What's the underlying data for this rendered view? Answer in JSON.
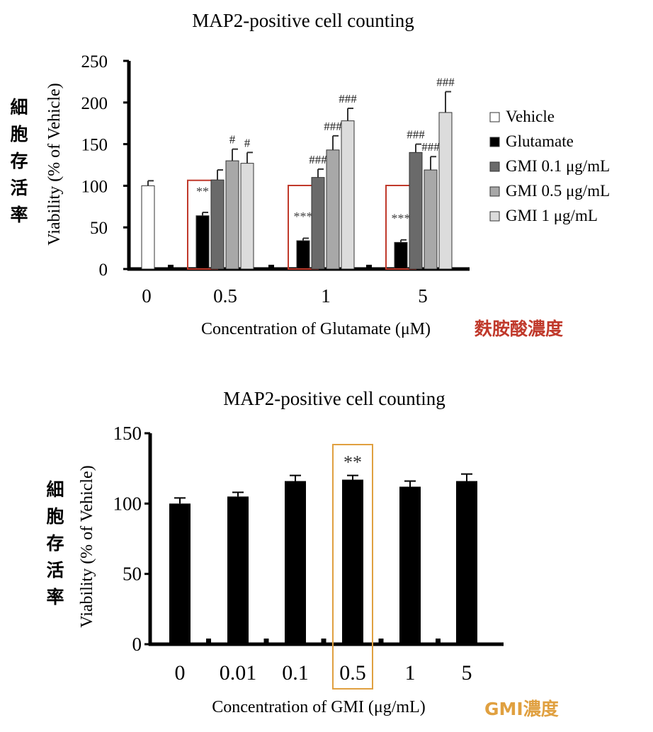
{
  "chart_data": [
    {
      "type": "bar",
      "title": "MAP2-positive  cell counting",
      "ylabel": "Viability (% of Vehicle)",
      "ylabel_zh": "細胞存活率",
      "xlabel": "Concentration of Glutamate (μM)",
      "xlabel_zh": "麩胺酸濃度",
      "ylim": [
        0,
        250
      ],
      "yticks": [
        "0",
        "50",
        "100",
        "150",
        "200",
        "250"
      ],
      "categories": [
        "0",
        "0.5",
        "1",
        "5"
      ],
      "series": [
        {
          "name": "Vehicle",
          "values": [
            100,
            null,
            null,
            null
          ],
          "errors": [
            6,
            null,
            null,
            null
          ],
          "color": "#ffffff"
        },
        {
          "name": "Glutamate",
          "values": [
            null,
            64,
            34,
            32
          ],
          "errors": [
            null,
            4,
            3,
            3
          ],
          "color": "#000000"
        },
        {
          "name": "GMI 0.1 μg/mL",
          "values": [
            null,
            107,
            110,
            140
          ],
          "errors": [
            null,
            12,
            10,
            10
          ],
          "color": "#6a6a6a"
        },
        {
          "name": "GMI 0.5 μg/mL",
          "values": [
            null,
            130,
            143,
            119
          ],
          "errors": [
            null,
            14,
            17,
            16
          ],
          "color": "#a8a8a8"
        },
        {
          "name": "GMI 1 μg/mL",
          "values": [
            null,
            127,
            178,
            188
          ],
          "errors": [
            null,
            13,
            15,
            25
          ],
          "color": "#dcdcdc"
        }
      ],
      "annotations": [
        {
          "text": "**",
          "category": "0.5",
          "series": "Glutamate"
        },
        {
          "text": "***",
          "category": "1",
          "series": "Glutamate"
        },
        {
          "text": "***",
          "category": "5",
          "series": "Glutamate"
        },
        {
          "text": "#",
          "category": "0.5",
          "series": "GMI 0.5 μg/mL"
        },
        {
          "text": "#",
          "category": "0.5",
          "series": "GMI 1 μg/mL"
        },
        {
          "text": "###",
          "category": "1",
          "series": "GMI 0.1 μg/mL"
        },
        {
          "text": "###",
          "category": "1",
          "series": "GMI 0.5 μg/mL"
        },
        {
          "text": "###",
          "category": "1",
          "series": "GMI 1 μg/mL"
        },
        {
          "text": "###",
          "category": "5",
          "series": "GMI 0.1 μg/mL"
        },
        {
          "text": "###",
          "category": "5",
          "series": "GMI 0.5 μg/mL"
        },
        {
          "text": "###",
          "category": "5",
          "series": "GMI 1 μg/mL"
        }
      ],
      "highlight": [
        "0.5",
        "1",
        "5"
      ],
      "highlight_color": "#c0392b",
      "legend_position": "right"
    },
    {
      "type": "bar",
      "title": "MAP2-positive  cell counting",
      "ylabel": "Viability (% of Vehicle)",
      "ylabel_zh": "細胞存活率",
      "xlabel": "Concentration of GMI (μg/mL)",
      "xlabel_zh": "GMI濃度",
      "ylim": [
        0,
        150
      ],
      "yticks": [
        "0",
        "50",
        "100",
        "150"
      ],
      "categories": [
        "0",
        "0.01",
        "0.1",
        "0.5",
        "1",
        "5"
      ],
      "values": [
        100,
        105,
        116,
        117,
        112,
        116
      ],
      "errors": [
        4,
        3,
        4,
        3,
        4,
        5
      ],
      "annotations": [
        {
          "text": "**",
          "category": "0.5"
        }
      ],
      "highlight": [
        "0.5"
      ],
      "highlight_color": "#e0a040",
      "bar_color": "#000000"
    }
  ]
}
